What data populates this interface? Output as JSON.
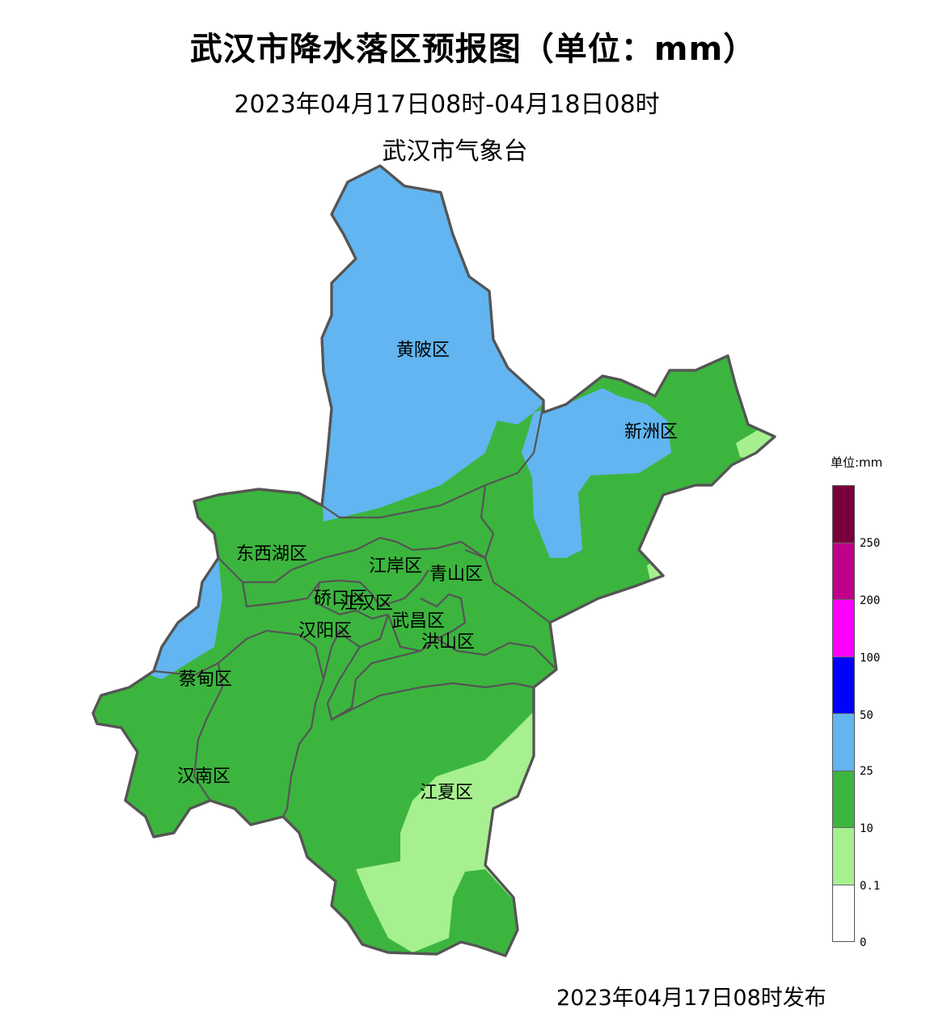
{
  "header": {
    "title": "武汉市降水落区预报图（单位：mm）",
    "subtitle": "2023年04月17日08时-04月18日08时",
    "issuer": "武汉市气象台"
  },
  "footer": {
    "issued": "2023年04月17日08时发布"
  },
  "districts": [
    {
      "id": "huangpi",
      "label": "黄陂区"
    },
    {
      "id": "xinzhou",
      "label": "新洲区"
    },
    {
      "id": "dongxihu",
      "label": "东西湖区"
    },
    {
      "id": "jiangan",
      "label": "江岸区"
    },
    {
      "id": "qingshan",
      "label": "青山区"
    },
    {
      "id": "qiaokou",
      "label": "硚口区"
    },
    {
      "id": "jianghan",
      "label": "江汉区"
    },
    {
      "id": "wuchang",
      "label": "武昌区"
    },
    {
      "id": "hanyang",
      "label": "汉阳区"
    },
    {
      "id": "hongshan",
      "label": "洪山区"
    },
    {
      "id": "caidian",
      "label": "蔡甸区"
    },
    {
      "id": "hannan",
      "label": "汉南区"
    },
    {
      "id": "jiangxia",
      "label": "江夏区"
    }
  ],
  "legend": {
    "title": "单位:mm",
    "levels": [
      {
        "label": "250",
        "color": "#7a003c"
      },
      {
        "label": "200",
        "color": "#c0008a"
      },
      {
        "label": "100",
        "color": "#ff00ff"
      },
      {
        "label": "50",
        "color": "#0000ff"
      },
      {
        "label": "25",
        "color": "#62b5f0"
      },
      {
        "label": "10",
        "color": "#3cb53f"
      },
      {
        "label": "0.1",
        "color": "#a6f08f"
      },
      {
        "label": "0",
        "color": "#ffffff"
      }
    ]
  },
  "colors": {
    "heavy_rain_25_50": "#62b5f0",
    "moderate_rain_10_25": "#3cb53f",
    "light_rain_0_1_10": "#a6f08f",
    "boundary": "#555555"
  }
}
